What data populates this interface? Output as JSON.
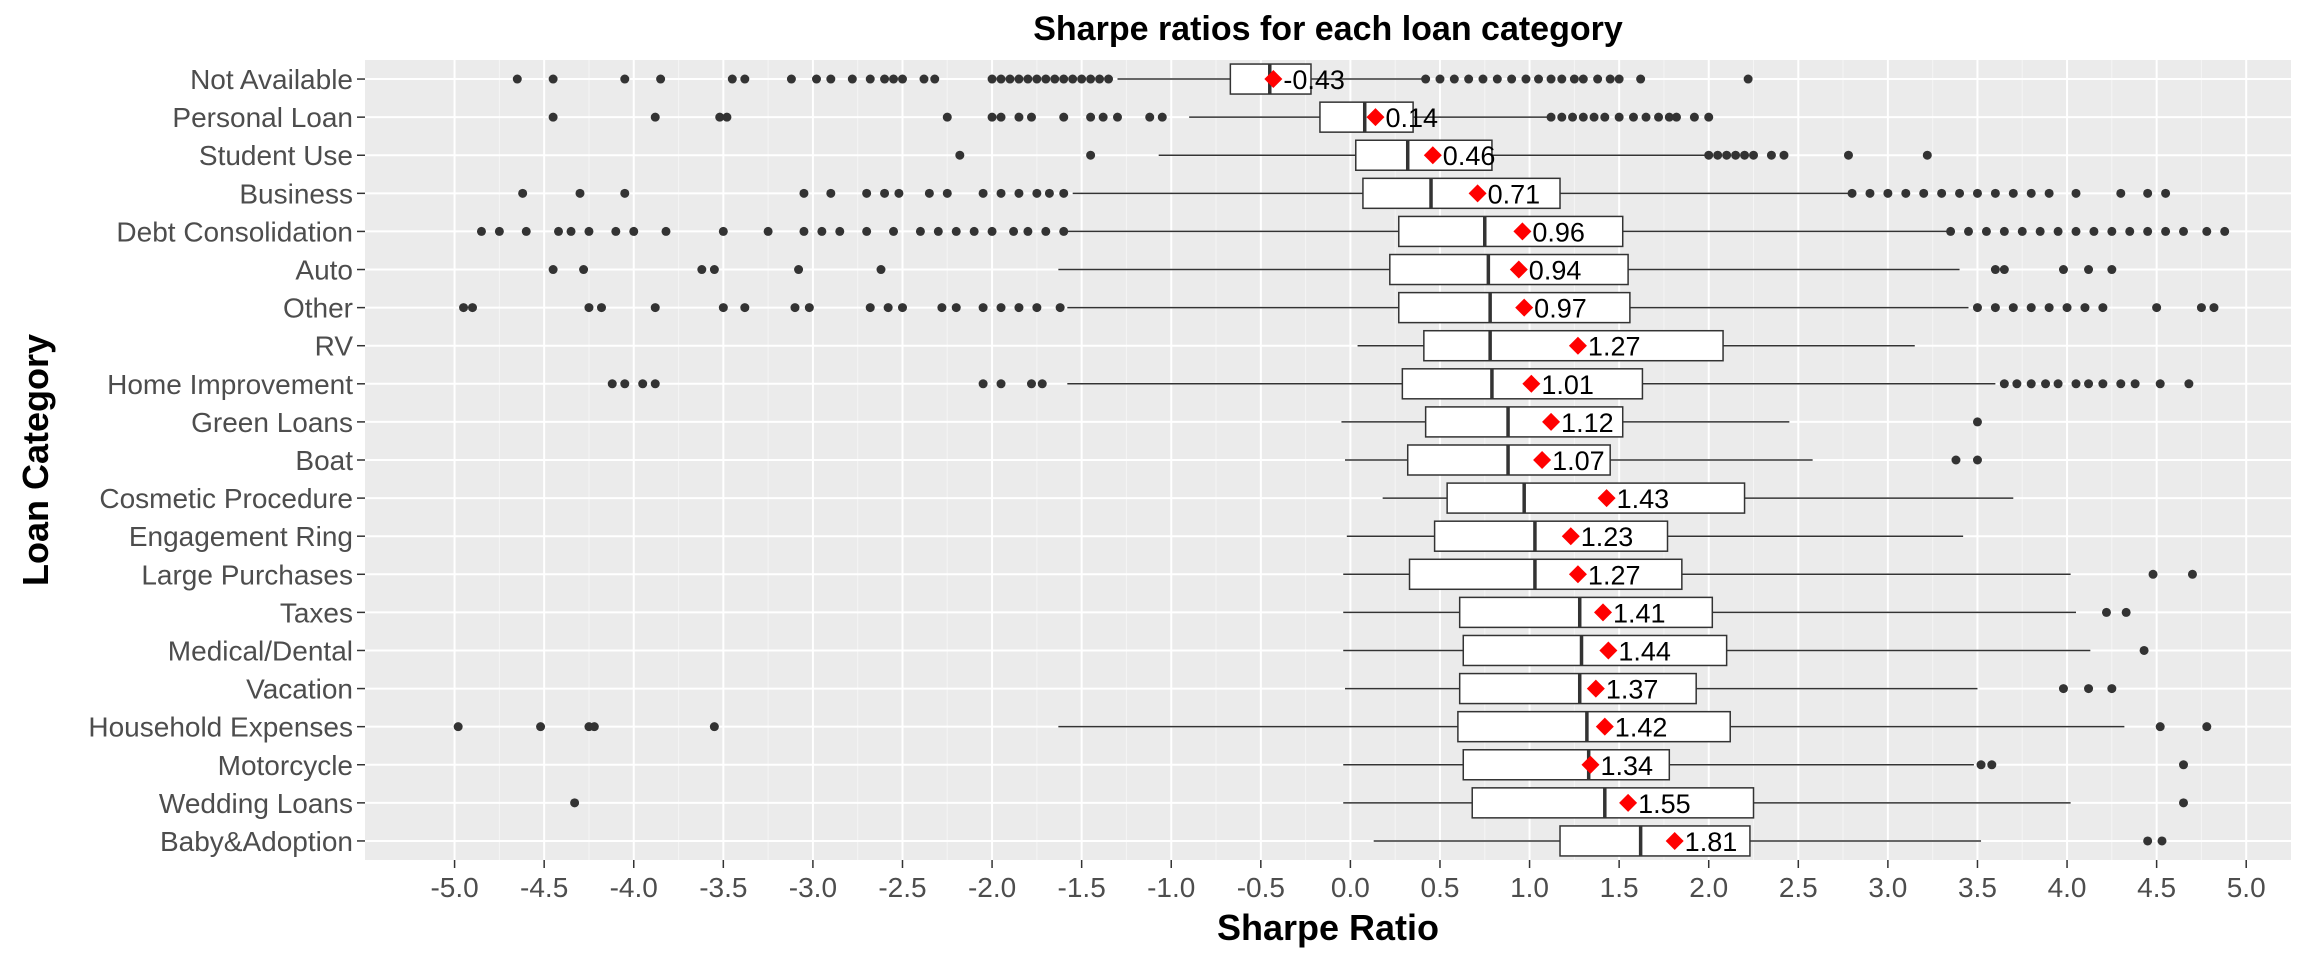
{
  "chart_data": {
    "type": "boxplot",
    "orientation": "horizontal",
    "title": "Sharpe ratios for each loan category",
    "xlabel": "Sharpe Ratio",
    "ylabel": "Loan Category",
    "xlim": [
      -5.5,
      5.25
    ],
    "x_ticks": [
      "-5.0",
      "-4.5",
      "-4.0",
      "-3.5",
      "-3.0",
      "-2.5",
      "-2.0",
      "-1.5",
      "-1.0",
      "-0.5",
      "0.0",
      "0.5",
      "1.0",
      "1.5",
      "2.0",
      "2.5",
      "3.0",
      "3.5",
      "4.0",
      "4.5",
      "5.0"
    ],
    "grid": true,
    "legend": "none",
    "mean_marker_color": "#ff0000",
    "background_color": "#ebebeb",
    "categories": [
      {
        "name": "Not Available",
        "whisker_low": -1.3,
        "q1": -0.67,
        "median": -0.45,
        "q3": -0.22,
        "whisker_high": 0.4,
        "mean": -0.43,
        "mean_label": "-0.43",
        "outliers": [
          -4.65,
          -4.45,
          -4.05,
          -3.85,
          -3.45,
          -3.38,
          -3.12,
          -2.98,
          -2.9,
          -2.78,
          -2.68,
          -2.6,
          -2.55,
          -2.5,
          -2.38,
          -2.32,
          -2.0,
          -1.95,
          -1.9,
          -1.85,
          -1.8,
          -1.75,
          -1.7,
          -1.65,
          -1.6,
          -1.55,
          -1.5,
          -1.45,
          -1.4,
          -1.35,
          0.42,
          0.5,
          0.58,
          0.66,
          0.74,
          0.82,
          0.9,
          0.98,
          1.05,
          1.12,
          1.18,
          1.25,
          1.3,
          1.38,
          1.45,
          1.5,
          1.62,
          2.22
        ]
      },
      {
        "name": "Personal Loan",
        "whisker_low": -0.9,
        "q1": -0.17,
        "median": 0.08,
        "q3": 0.35,
        "whisker_high": 1.1,
        "mean": 0.14,
        "mean_label": "0.14",
        "outliers": [
          -4.45,
          -3.88,
          -3.52,
          -3.48,
          -2.25,
          -2.0,
          -1.95,
          -1.85,
          -1.78,
          -1.6,
          -1.45,
          -1.38,
          -1.3,
          -1.12,
          -1.05,
          1.12,
          1.18,
          1.24,
          1.3,
          1.36,
          1.42,
          1.5,
          1.58,
          1.65,
          1.72,
          1.78,
          1.82,
          1.92,
          2.0
        ]
      },
      {
        "name": "Student Use",
        "whisker_low": -1.07,
        "q1": 0.03,
        "median": 0.32,
        "q3": 0.79,
        "whisker_high": 1.98,
        "mean": 0.46,
        "mean_label": "0.46",
        "outliers": [
          -2.18,
          -1.45,
          2.0,
          2.05,
          2.1,
          2.15,
          2.2,
          2.25,
          2.35,
          2.42,
          2.78,
          3.22
        ]
      },
      {
        "name": "Business",
        "whisker_low": -1.55,
        "q1": 0.07,
        "median": 0.45,
        "q3": 1.17,
        "whisker_high": 2.78,
        "mean": 0.71,
        "mean_label": "0.71",
        "outliers": [
          -4.62,
          -4.3,
          -4.05,
          -3.05,
          -2.9,
          -2.7,
          -2.6,
          -2.52,
          -2.35,
          -2.25,
          -2.05,
          -1.95,
          -1.85,
          -1.75,
          -1.68,
          -1.6,
          2.8,
          2.9,
          3.0,
          3.1,
          3.2,
          3.3,
          3.4,
          3.5,
          3.6,
          3.7,
          3.8,
          3.9,
          4.05,
          4.3,
          4.45,
          4.55
        ]
      },
      {
        "name": "Debt Consolidation",
        "whisker_low": -1.58,
        "q1": 0.27,
        "median": 0.75,
        "q3": 1.52,
        "whisker_high": 3.35,
        "mean": 0.96,
        "mean_label": "0.96",
        "outliers": [
          -4.85,
          -4.75,
          -4.6,
          -4.42,
          -4.35,
          -4.25,
          -4.1,
          -4.0,
          -3.82,
          -3.5,
          -3.25,
          -3.05,
          -2.95,
          -2.85,
          -2.7,
          -2.55,
          -2.4,
          -2.3,
          -2.2,
          -2.1,
          -2.0,
          -1.88,
          -1.8,
          -1.7,
          -1.6,
          3.35,
          3.45,
          3.55,
          3.65,
          3.75,
          3.85,
          3.95,
          4.05,
          4.15,
          4.25,
          4.35,
          4.45,
          4.55,
          4.65,
          4.78,
          4.88
        ]
      },
      {
        "name": "Auto",
        "whisker_low": -1.63,
        "q1": 0.22,
        "median": 0.77,
        "q3": 1.55,
        "whisker_high": 3.4,
        "mean": 0.94,
        "mean_label": "0.94",
        "outliers": [
          -4.45,
          -4.28,
          -3.62,
          -3.55,
          -3.08,
          -2.62,
          3.6,
          3.65,
          3.98,
          4.12,
          4.25
        ]
      },
      {
        "name": "Other",
        "whisker_low": -1.58,
        "q1": 0.27,
        "median": 0.78,
        "q3": 1.56,
        "whisker_high": 3.45,
        "mean": 0.97,
        "mean_label": "0.97",
        "outliers": [
          -4.95,
          -4.9,
          -4.25,
          -4.18,
          -3.88,
          -3.5,
          -3.38,
          -3.1,
          -3.02,
          -2.68,
          -2.58,
          -2.5,
          -2.28,
          -2.2,
          -2.05,
          -1.95,
          -1.85,
          -1.75,
          -1.62,
          3.5,
          3.6,
          3.7,
          3.8,
          3.9,
          4.0,
          4.1,
          4.2,
          4.5,
          4.75,
          4.82
        ]
      },
      {
        "name": "RV",
        "whisker_low": 0.04,
        "q1": 0.41,
        "median": 0.78,
        "q3": 2.08,
        "whisker_high": 3.15,
        "mean": 1.27,
        "mean_label": "1.27",
        "outliers": []
      },
      {
        "name": "Home Improvement",
        "whisker_low": -1.58,
        "q1": 0.29,
        "median": 0.79,
        "q3": 1.63,
        "whisker_high": 3.6,
        "mean": 1.01,
        "mean_label": "1.01",
        "outliers": [
          -4.12,
          -4.05,
          -3.95,
          -3.88,
          -2.05,
          -1.95,
          -1.78,
          -1.72,
          3.65,
          3.72,
          3.8,
          3.88,
          3.95,
          4.05,
          4.12,
          4.2,
          4.3,
          4.38,
          4.52,
          4.68
        ]
      },
      {
        "name": "Green Loans",
        "whisker_low": -0.05,
        "q1": 0.42,
        "median": 0.88,
        "q3": 1.52,
        "whisker_high": 2.45,
        "mean": 1.12,
        "mean_label": "1.12",
        "outliers": [
          3.5
        ]
      },
      {
        "name": "Boat",
        "whisker_low": -0.03,
        "q1": 0.32,
        "median": 0.88,
        "q3": 1.45,
        "whisker_high": 2.58,
        "mean": 1.07,
        "mean_label": "1.07",
        "outliers": [
          3.38,
          3.5
        ]
      },
      {
        "name": "Cosmetic Procedure",
        "whisker_low": 0.18,
        "q1": 0.54,
        "median": 0.97,
        "q3": 2.2,
        "whisker_high": 3.7,
        "mean": 1.43,
        "mean_label": "1.43",
        "outliers": []
      },
      {
        "name": "Engagement Ring",
        "whisker_low": -0.02,
        "q1": 0.47,
        "median": 1.03,
        "q3": 1.77,
        "whisker_high": 3.42,
        "mean": 1.23,
        "mean_label": "1.23",
        "outliers": []
      },
      {
        "name": "Large Purchases",
        "whisker_low": -0.04,
        "q1": 0.33,
        "median": 1.03,
        "q3": 1.85,
        "whisker_high": 4.02,
        "mean": 1.27,
        "mean_label": "1.27",
        "outliers": [
          4.48,
          4.7
        ]
      },
      {
        "name": "Taxes",
        "whisker_low": -0.04,
        "q1": 0.61,
        "median": 1.28,
        "q3": 2.02,
        "whisker_high": 4.05,
        "mean": 1.41,
        "mean_label": "1.41",
        "outliers": [
          4.22,
          4.33
        ]
      },
      {
        "name": "Medical/Dental",
        "whisker_low": -0.04,
        "q1": 0.63,
        "median": 1.29,
        "q3": 2.1,
        "whisker_high": 4.13,
        "mean": 1.44,
        "mean_label": "1.44",
        "outliers": [
          4.43
        ]
      },
      {
        "name": "Vacation",
        "whisker_low": -0.03,
        "q1": 0.61,
        "median": 1.28,
        "q3": 1.93,
        "whisker_high": 3.5,
        "mean": 1.37,
        "mean_label": "1.37",
        "outliers": [
          3.98,
          4.12,
          4.25
        ]
      },
      {
        "name": "Household Expenses",
        "whisker_low": -1.63,
        "q1": 0.6,
        "median": 1.32,
        "q3": 2.12,
        "whisker_high": 4.32,
        "mean": 1.42,
        "mean_label": "1.42",
        "outliers": [
          -4.98,
          -4.52,
          -4.25,
          -4.22,
          -3.55,
          4.52,
          4.78
        ]
      },
      {
        "name": "Motorcycle",
        "whisker_low": -0.04,
        "q1": 0.63,
        "median": 1.33,
        "q3": 1.78,
        "whisker_high": 3.48,
        "mean": 1.34,
        "mean_label": "1.34",
        "outliers": [
          3.52,
          3.58,
          4.65
        ]
      },
      {
        "name": "Wedding Loans",
        "whisker_low": -0.04,
        "q1": 0.68,
        "median": 1.42,
        "q3": 2.25,
        "whisker_high": 4.02,
        "mean": 1.55,
        "mean_label": "1.55",
        "outliers": [
          -4.33,
          4.65
        ]
      },
      {
        "name": "Baby&Adoption",
        "whisker_low": 0.13,
        "q1": 1.17,
        "median": 1.62,
        "q3": 2.23,
        "whisker_high": 3.52,
        "mean": 1.81,
        "mean_label": "1.81",
        "outliers": [
          4.45,
          4.53
        ]
      }
    ]
  }
}
